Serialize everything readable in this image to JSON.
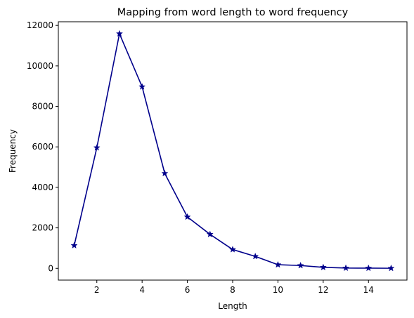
{
  "chart_data": {
    "type": "line",
    "title": "Mapping from word length to word frequency",
    "xlabel": "Length",
    "ylabel": "Frequency",
    "x": [
      1,
      2,
      3,
      4,
      5,
      6,
      7,
      8,
      9,
      10,
      11,
      12,
      13,
      14,
      15
    ],
    "series": [
      {
        "values": [
          1130,
          5960,
          11590,
          8970,
          4690,
          2540,
          1680,
          930,
          590,
          180,
          140,
          50,
          15,
          10,
          5
        ],
        "color": "#00008b",
        "marker": "star"
      }
    ],
    "xlim": [
      0.3,
      15.7
    ],
    "ylim": [
      -580,
      12180
    ],
    "xticks": [
      2,
      4,
      6,
      8,
      10,
      12,
      14
    ],
    "yticks": [
      0,
      2000,
      4000,
      6000,
      8000,
      10000,
      12000
    ],
    "grid": false,
    "legend": "none"
  }
}
